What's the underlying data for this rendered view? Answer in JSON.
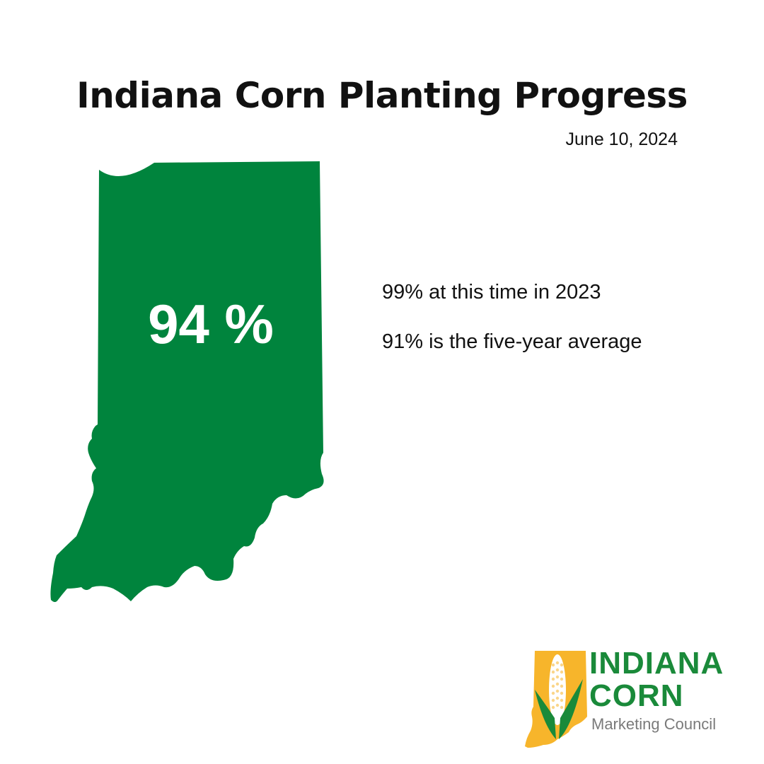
{
  "title": "Indiana Corn Planting Progress",
  "date": "June 10, 2024",
  "progress": {
    "current_percent_label": "94 %",
    "current_percent": 94
  },
  "stats": [
    "99% at this time in 2023",
    "91% is the five-year average"
  ],
  "logo": {
    "line1": "INDIANA",
    "line2": "CORN",
    "subtitle": "Marketing Council"
  },
  "colors": {
    "map_green": "#00843d",
    "logo_green": "#1a8a3a",
    "logo_yellow": "#f7b52b",
    "text": "#111111"
  }
}
